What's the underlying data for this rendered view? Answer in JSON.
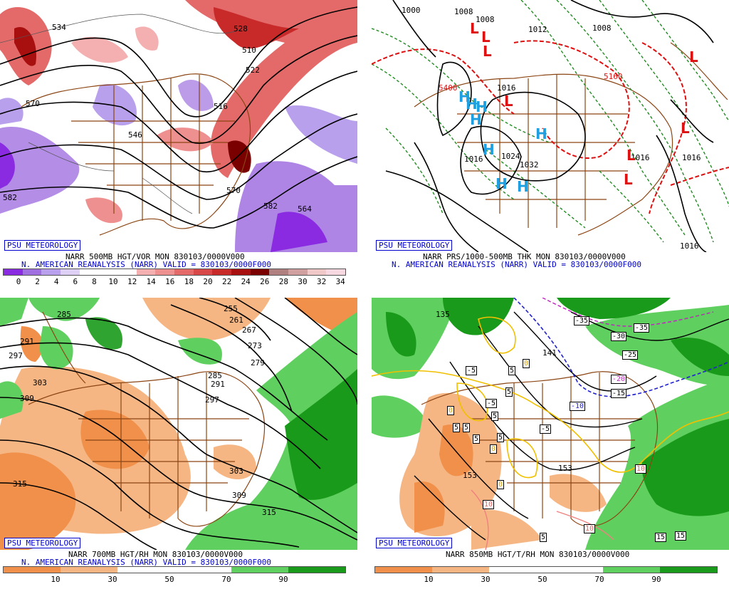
{
  "panels": [
    {
      "badge": "PSU METEOROLOGY",
      "caption1": "NARR 500MB HGT/VOR MON 830103/0000V000",
      "caption2": "N. AMERICAN REANALYSIS (NARR) VALID = 830103/0000F000",
      "ticks": [
        "0",
        "2",
        "4",
        "6",
        "8",
        "10",
        "12",
        "14",
        "16",
        "18",
        "20",
        "22",
        "24",
        "26",
        "28",
        "30",
        "32",
        "34"
      ],
      "colors": [
        "#8a2be2",
        "#a070e0",
        "#b9a0ec",
        "#ddd0f4",
        "#ffffff",
        "#ffffff",
        "#ffffff",
        "#f4b0b0",
        "#ee9090",
        "#e46a6a",
        "#d84848",
        "#c82a2a",
        "#a81010",
        "#7a0000",
        "#b08080",
        "#d0a0a0",
        "#f0c8c8",
        "#f8d8e0"
      ],
      "contour_labels": [
        "534",
        "528",
        "510",
        "522",
        "570",
        "516",
        "582",
        "570",
        "582",
        "564",
        "546"
      ]
    },
    {
      "badge": "PSU METEOROLOGY",
      "caption1": "NARR PRS/1000-500MB THK MON 830103/0000V000",
      "caption2": "N. AMERICAN REANALYSIS (NARR) VALID = 830103/0000F000",
      "highs": [
        "H",
        "H",
        "H",
        "H",
        "H",
        "H",
        "H",
        "H"
      ],
      "lows": [
        "L",
        "L",
        "L",
        "L",
        "L",
        "L",
        "L",
        "L"
      ],
      "contour_labels": [
        "1000",
        "1008",
        "1008",
        "1012",
        "1008",
        "1016",
        "5400",
        "1024",
        "1032",
        "1016",
        "1016",
        "5160",
        "1016",
        "1016"
      ]
    },
    {
      "badge": "PSU METEOROLOGY",
      "caption1": "NARR 700MB HGT/RH MON 830103/0000V000",
      "caption2": "N. AMERICAN REANALYSIS (NARR) VALID = 830103/0000F000",
      "ticks": [
        "10",
        "30",
        "50",
        "70",
        "90"
      ],
      "colors": [
        "#f0904a",
        "#f6b684",
        "#ffffff",
        "#ffffff",
        "#5fd05f",
        "#1a9a1a"
      ],
      "contour_labels": [
        "285",
        "255",
        "261",
        "267",
        "273",
        "279",
        "291",
        "297",
        "303",
        "309",
        "285",
        "291",
        "297",
        "303",
        "309",
        "315",
        "315"
      ]
    },
    {
      "badge": "PSU METEOROLOGY",
      "caption1": "NARR 850MB HGT/T/RH MON 830103/0000V000",
      "caption2": "",
      "ticks": [
        "10",
        "30",
        "50",
        "70",
        "90"
      ],
      "colors": [
        "#f0904a",
        "#f6b684",
        "#ffffff",
        "#ffffff",
        "#5fd05f",
        "#1a9a1a"
      ],
      "contour_labels": [
        "135",
        "141",
        "153",
        "153"
      ],
      "temp_labels": [
        "-35",
        "-30",
        "-35",
        "-25",
        "-20",
        "-15",
        "-10",
        "-5",
        "-5",
        "-5",
        "5",
        "5",
        "5",
        "5",
        "5",
        "5",
        "5",
        "0",
        "0",
        "0",
        "0",
        "10",
        "10",
        "10",
        "15",
        "15",
        "5"
      ]
    }
  ]
}
